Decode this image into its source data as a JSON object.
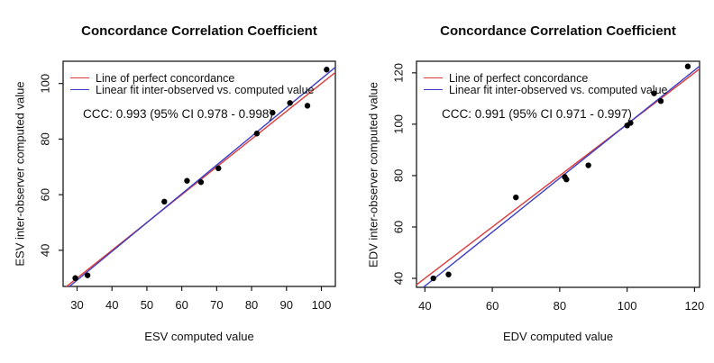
{
  "figure": {
    "background": "#ffffff",
    "text_color": "#0d0d0d"
  },
  "chart_data": [
    {
      "type": "scatter",
      "title": "Concordance Correlation Coefficient",
      "xlabel": "ESV computed value",
      "ylabel": "ESV inter-observer computed value",
      "annotation": "CCC: 0.993 (95% CI 0.978 - 0.998)",
      "legend_position": "topleft",
      "grid": false,
      "legend": [
        {
          "label": "Line of perfect concordance",
          "color": "#d93a3a",
          "line": "identity"
        },
        {
          "label": "Linear fit inter-observed vs. computed value",
          "color": "#3d3dc4",
          "line": "fit"
        }
      ],
      "xlim": [
        26,
        104
      ],
      "ylim": [
        27,
        108
      ],
      "xticks": [
        30,
        40,
        50,
        60,
        70,
        80,
        90,
        100
      ],
      "yticks": [
        40,
        60,
        80,
        100
      ],
      "points": [
        [
          29.5,
          30
        ],
        [
          33,
          31
        ],
        [
          55,
          57.5
        ],
        [
          61.5,
          65
        ],
        [
          65.5,
          64.5
        ],
        [
          70.5,
          69.5
        ],
        [
          81.5,
          82
        ],
        [
          86,
          89.5
        ],
        [
          91,
          93
        ],
        [
          96,
          92
        ],
        [
          101.5,
          105
        ]
      ],
      "point_color": "#000000",
      "identity_line": {
        "slope": 1,
        "intercept": 0,
        "color": "#d93a3a"
      },
      "fit_line": {
        "slope": 1.035,
        "intercept": -1.8,
        "color": "#3d3dc4"
      }
    },
    {
      "type": "scatter",
      "title": "Concordance Correlation Coefficient",
      "xlabel": "EDV computed value",
      "ylabel": "EDV inter-observer computed value",
      "annotation": "CCC: 0.991 (95% CI 0.971 - 0.997)",
      "legend_position": "topleft",
      "grid": false,
      "legend": [
        {
          "label": "Line of perfect concordance",
          "color": "#d93a3a",
          "line": "identity"
        },
        {
          "label": "Linear fit inter-observed vs. computed value",
          "color": "#3d3dc4",
          "line": "fit"
        }
      ],
      "xlim": [
        37.5,
        121.5
      ],
      "ylim": [
        36.5,
        124.5
      ],
      "xticks": [
        40,
        60,
        80,
        100,
        120
      ],
      "yticks": [
        40,
        60,
        80,
        100,
        120
      ],
      "points": [
        [
          42.5,
          40
        ],
        [
          47,
          41.5
        ],
        [
          67,
          71.5
        ],
        [
          81.5,
          79.5
        ],
        [
          82,
          78.5
        ],
        [
          88.5,
          84
        ],
        [
          100,
          99.5
        ],
        [
          101,
          100.5
        ],
        [
          108,
          112
        ],
        [
          110,
          109
        ],
        [
          118,
          122.5
        ]
      ],
      "point_color": "#000000",
      "identity_line": {
        "slope": 1,
        "intercept": 0,
        "color": "#d93a3a"
      },
      "fit_line": {
        "slope": 1.05,
        "intercept": -5.0,
        "color": "#3d3dc4"
      }
    }
  ]
}
